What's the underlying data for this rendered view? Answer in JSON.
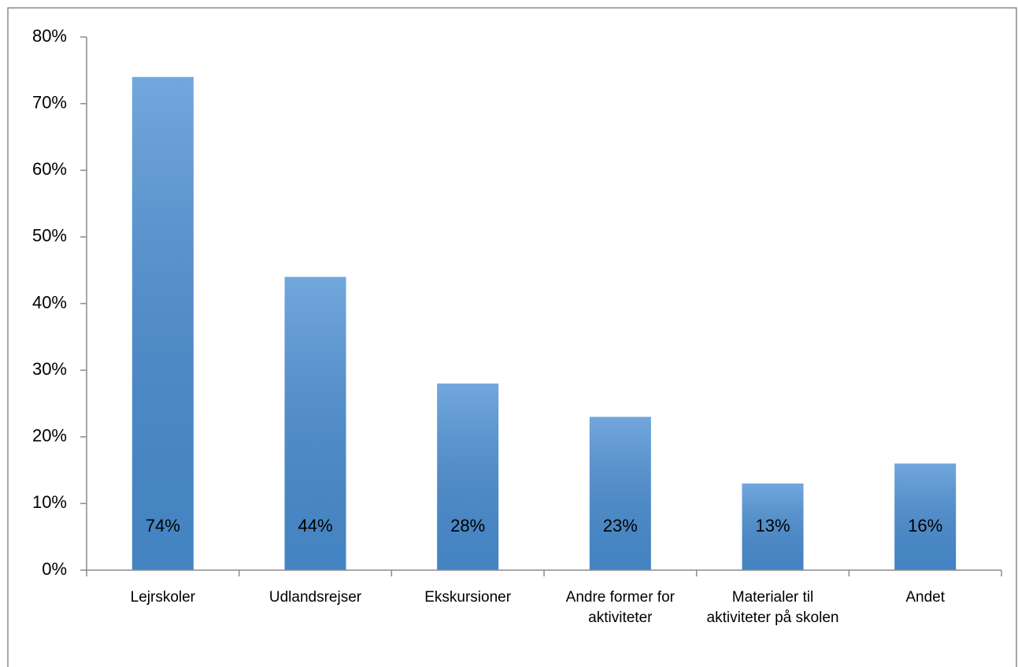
{
  "chart_data": {
    "type": "bar",
    "categories": [
      "Lejrskoler",
      "Udlandsrejser",
      "Ekskursioner",
      "Andre former for aktiviteter",
      "Materialer til aktiviteter på skolen",
      "Andet"
    ],
    "values": [
      74,
      44,
      28,
      23,
      13,
      16
    ],
    "value_labels": [
      "74%",
      "44%",
      "28%",
      "23%",
      "13%",
      "16%"
    ],
    "color": "#4a8fd4",
    "ylim": [
      0,
      80
    ],
    "yticks": [
      {
        "value": 0,
        "label": "0%"
      },
      {
        "value": 10,
        "label": "10%"
      },
      {
        "value": 20,
        "label": "20%"
      },
      {
        "value": 30,
        "label": "30%"
      },
      {
        "value": 40,
        "label": "40%"
      },
      {
        "value": 50,
        "label": "50%"
      },
      {
        "value": 60,
        "label": "60%"
      },
      {
        "value": 70,
        "label": "70%"
      },
      {
        "value": 80,
        "label": "80%"
      }
    ],
    "grid": false
  }
}
